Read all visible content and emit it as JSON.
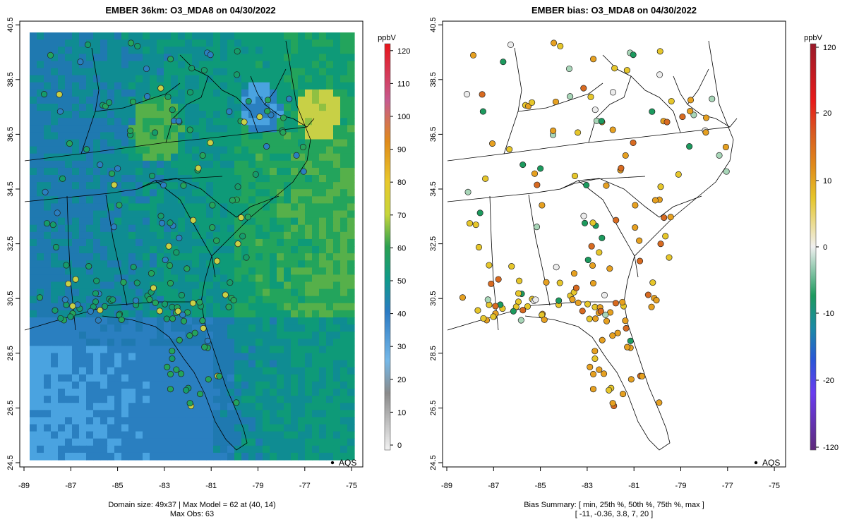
{
  "left_panel": {
    "title": "EMBER 36km: O3_MDA8 on 04/30/2022",
    "x_ticks": [
      "-89",
      "-87",
      "-85",
      "-83",
      "-81",
      "-79",
      "-77",
      "-75"
    ],
    "y_ticks": [
      "24.5",
      "26.5",
      "28.5",
      "30.5",
      "32.5",
      "34.5",
      "36.5",
      "38.5",
      "40.5"
    ],
    "legend_label": "AQS",
    "footer_line1": "Domain size: 49x37 | Max Model = 62 at (40, 14)",
    "footer_line2": "Max Obs: 63"
  },
  "left_colorbar": {
    "unit": "ppbV",
    "ticks": [
      "0",
      "10",
      "20",
      "30",
      "40",
      "50",
      "60",
      "70",
      "80",
      "90",
      "100",
      "110",
      "120"
    ]
  },
  "right_panel": {
    "title": "EMBER bias: O3_MDA8 on 04/30/2022",
    "x_ticks": [
      "-89",
      "-87",
      "-85",
      "-83",
      "-81",
      "-79",
      "-77",
      "-75"
    ],
    "y_ticks": [
      "24.5",
      "26.5",
      "28.5",
      "30.5",
      "32.5",
      "34.5",
      "36.5",
      "38.5",
      "40.5"
    ],
    "legend_label": "AQS",
    "footer_line1": "Bias Summary: [ min, 25th %, 50th %, 75th %, max ]",
    "footer_line2": "[ -11,   -0.36,   3.8,   7,   20 ]"
  },
  "right_colorbar": {
    "unit": "ppbV",
    "ticks": [
      "-120",
      "-20",
      "-10",
      "0",
      "10",
      "20",
      "120"
    ]
  },
  "colors": {
    "model_low": "#1f6fb4",
    "model_mid": "#159c6a",
    "model_high": "#c9d44a",
    "bias_pos": "#e6a020",
    "bias_neg": "#1c8a5a",
    "bias_zero": "#ececec"
  }
}
